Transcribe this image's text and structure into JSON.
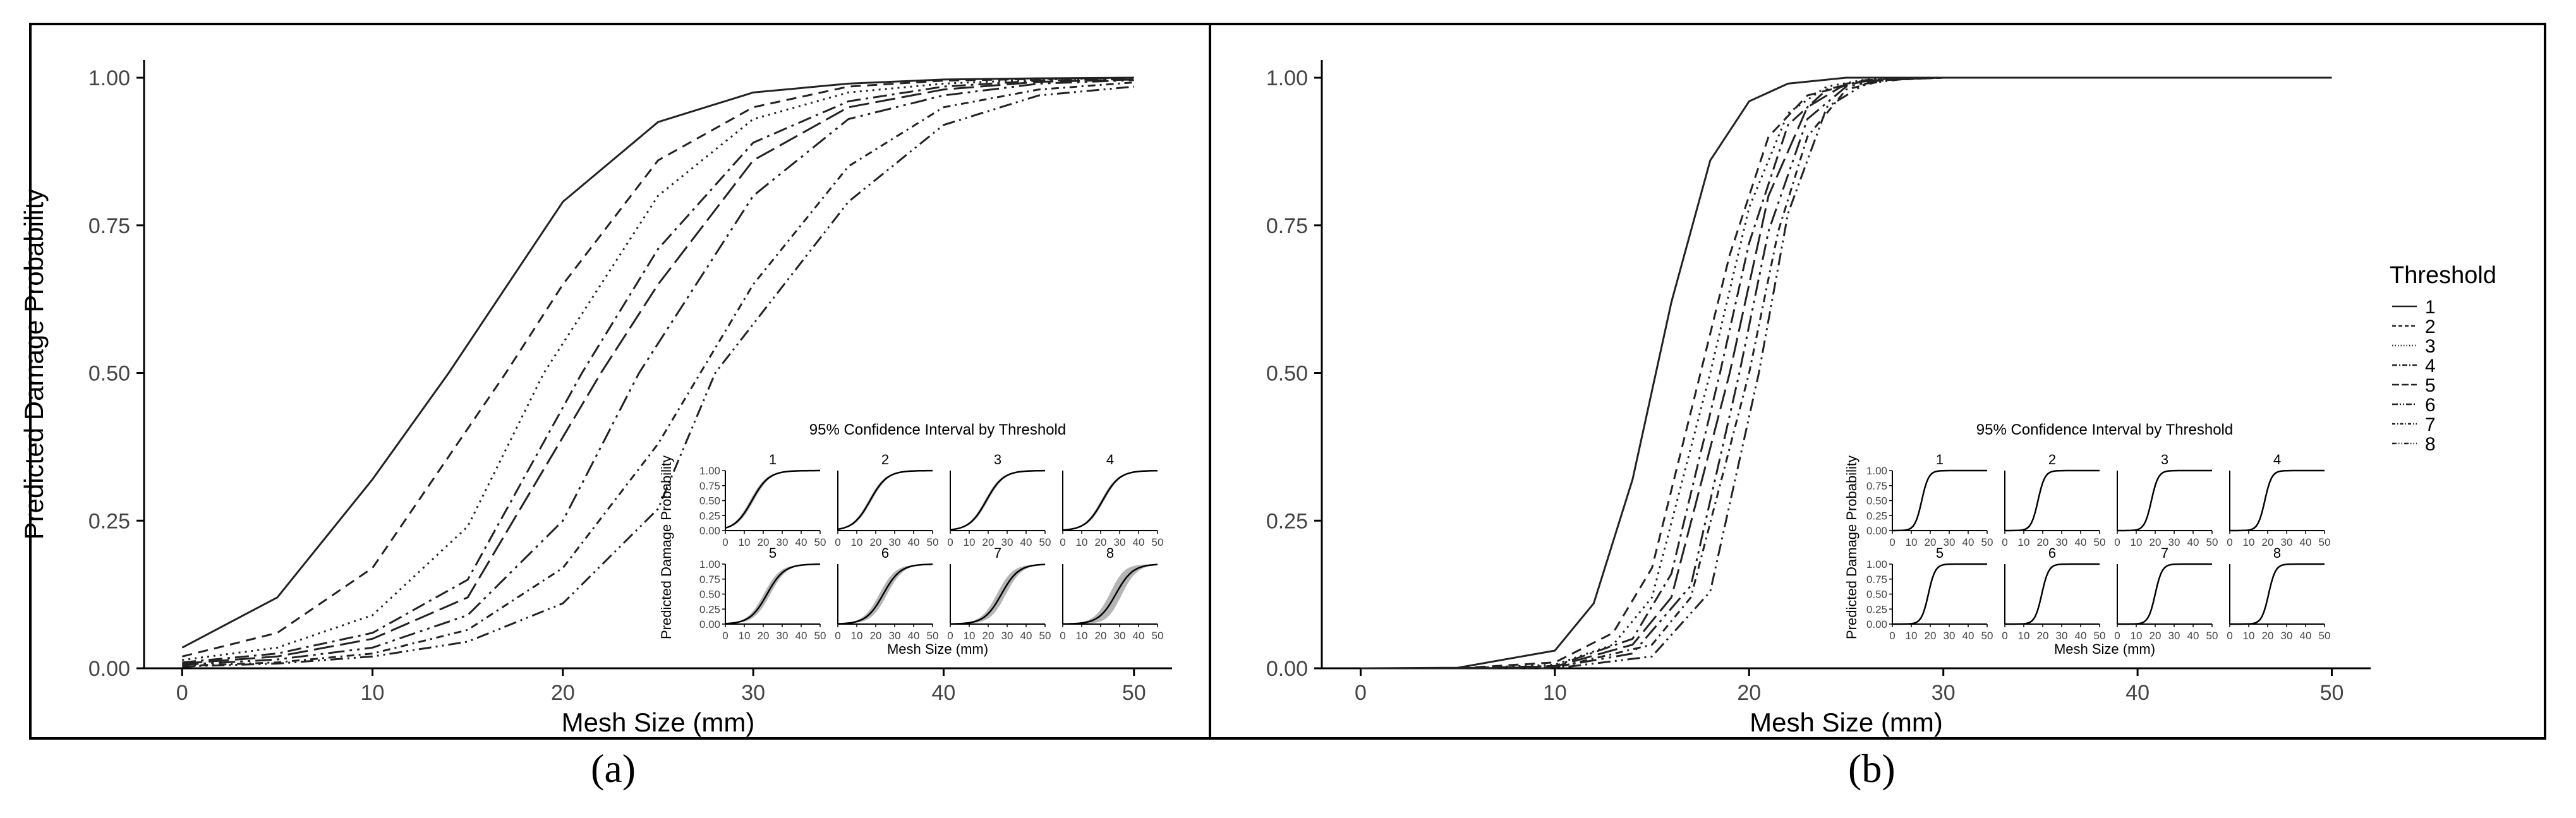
{
  "chart_data": [
    {
      "panel": "(a)",
      "type": "line",
      "xlabel": "Mesh Size (mm)",
      "ylabel": "Predicted Damage Probability",
      "xlim": [
        -2,
        52
      ],
      "ylim": [
        0,
        1.03
      ],
      "xticks": [
        "0",
        "10",
        "20",
        "30",
        "40",
        "50"
      ],
      "yticks": [
        "0.00",
        "0.25",
        "0.50",
        "0.75",
        "1.00"
      ],
      "grid": false,
      "series": [
        {
          "name": "1",
          "x": [
            0,
            5,
            10,
            14,
            20,
            25,
            30,
            35,
            40,
            45,
            50
          ],
          "y": [
            0.035,
            0.12,
            0.32,
            0.5,
            0.79,
            0.925,
            0.975,
            0.99,
            0.997,
            0.999,
            1.0
          ]
        },
        {
          "name": "2",
          "x": [
            0,
            5,
            10,
            17,
            20,
            25,
            30,
            35,
            40,
            45,
            50
          ],
          "y": [
            0.02,
            0.06,
            0.17,
            0.5,
            0.65,
            0.86,
            0.95,
            0.985,
            0.995,
            0.998,
            1.0
          ]
        },
        {
          "name": "3",
          "x": [
            0,
            5,
            10,
            15,
            19,
            25,
            30,
            35,
            40,
            45,
            50
          ],
          "y": [
            0.014,
            0.035,
            0.09,
            0.24,
            0.5,
            0.8,
            0.93,
            0.975,
            0.99,
            0.997,
            1.0
          ]
        },
        {
          "name": "4",
          "x": [
            0,
            5,
            10,
            15,
            21,
            25,
            30,
            35,
            40,
            45,
            50
          ],
          "y": [
            0.01,
            0.025,
            0.06,
            0.15,
            0.5,
            0.71,
            0.89,
            0.96,
            0.985,
            0.995,
            0.998
          ]
        },
        {
          "name": "5",
          "x": [
            0,
            5,
            10,
            15,
            22,
            25,
            30,
            35,
            40,
            45,
            50
          ],
          "y": [
            0.008,
            0.02,
            0.05,
            0.12,
            0.5,
            0.65,
            0.86,
            0.95,
            0.98,
            0.993,
            0.997
          ]
        },
        {
          "name": "6",
          "x": [
            0,
            5,
            10,
            15,
            20,
            24,
            30,
            35,
            40,
            45,
            50
          ],
          "y": [
            0.006,
            0.015,
            0.035,
            0.09,
            0.25,
            0.5,
            0.8,
            0.93,
            0.97,
            0.99,
            0.996
          ]
        },
        {
          "name": "7",
          "x": [
            0,
            5,
            10,
            15,
            20,
            25,
            30,
            35,
            40,
            45,
            50
          ],
          "y": [
            0.004,
            0.01,
            0.025,
            0.065,
            0.17,
            0.38,
            0.65,
            0.85,
            0.95,
            0.98,
            0.992
          ]
        },
        {
          "name": "8",
          "x": [
            0,
            5,
            10,
            15,
            20,
            25,
            28,
            35,
            40,
            45,
            50
          ],
          "y": [
            0.003,
            0.008,
            0.02,
            0.045,
            0.11,
            0.27,
            0.5,
            0.79,
            0.92,
            0.97,
            0.985
          ]
        }
      ],
      "inset": {
        "title": "95% Confidence Interval by Threshold",
        "xlabel": "Mesh Size (mm)",
        "ylabel": "Predicted Damage Probability",
        "xticks": [
          "0",
          "10",
          "20",
          "30",
          "40",
          "50"
        ],
        "yticks": [
          "0.00",
          "0.25",
          "0.50",
          "0.75",
          "1.00"
        ],
        "panels": [
          "1",
          "2",
          "3",
          "4",
          "5",
          "6",
          "7",
          "8"
        ],
        "midpoints": [
          14,
          17,
          19,
          21,
          22,
          24,
          27,
          28
        ],
        "scale": 4.5,
        "band": [
          0.06,
          0.05,
          0.05,
          0.05,
          0.1,
          0.12,
          0.14,
          0.2
        ]
      }
    },
    {
      "panel": "(b)",
      "type": "line",
      "xlabel": "Mesh Size (mm)",
      "ylabel": "",
      "xlim": [
        -2,
        52
      ],
      "ylim": [
        0,
        1.03
      ],
      "xticks": [
        "0",
        "10",
        "20",
        "30",
        "40",
        "50"
      ],
      "yticks": [
        "0.00",
        "0.25",
        "0.50",
        "0.75",
        "1.00"
      ],
      "grid": false,
      "legend": {
        "title": "Threshold",
        "position": "right",
        "entries": [
          "1",
          "2",
          "3",
          "4",
          "5",
          "6",
          "7",
          "8"
        ]
      },
      "series": [
        {
          "name": "1",
          "x": [
            0,
            5,
            10,
            12,
            14,
            16,
            18,
            20,
            22,
            25,
            30,
            50
          ],
          "y": [
            0.0,
            0.001,
            0.03,
            0.11,
            0.32,
            0.62,
            0.86,
            0.96,
            0.99,
            1.0,
            1.0,
            1.0
          ]
        },
        {
          "name": "2",
          "x": [
            0,
            5,
            10,
            13,
            15,
            17.5,
            19,
            21,
            23,
            26,
            30,
            50
          ],
          "y": [
            0.0,
            0.0,
            0.01,
            0.06,
            0.17,
            0.5,
            0.7,
            0.9,
            0.97,
            0.995,
            1.0,
            1.0
          ]
        },
        {
          "name": "3",
          "x": [
            0,
            5,
            10,
            13,
            15,
            18,
            20,
            22,
            24,
            26,
            30,
            50
          ],
          "y": [
            0.0,
            0.0,
            0.006,
            0.04,
            0.12,
            0.5,
            0.78,
            0.94,
            0.985,
            0.997,
            1.0,
            1.0
          ]
        },
        {
          "name": "4",
          "x": [
            0,
            5,
            10,
            14,
            16,
            18.5,
            20,
            22,
            24,
            26,
            30,
            50
          ],
          "y": [
            0.0,
            0.0,
            0.004,
            0.05,
            0.16,
            0.5,
            0.72,
            0.92,
            0.98,
            0.996,
            1.0,
            1.0
          ]
        },
        {
          "name": "5",
          "x": [
            0,
            5,
            10,
            14,
            16,
            19,
            21,
            23,
            25,
            27,
            30,
            50
          ],
          "y": [
            0.0,
            0.0,
            0.003,
            0.04,
            0.12,
            0.5,
            0.8,
            0.95,
            0.99,
            0.998,
            1.0,
            1.0
          ]
        },
        {
          "name": "6",
          "x": [
            0,
            5,
            10,
            14,
            17,
            19.5,
            21,
            23,
            25,
            27,
            30,
            50
          ],
          "y": [
            0.0,
            0.0,
            0.002,
            0.025,
            0.14,
            0.5,
            0.74,
            0.93,
            0.985,
            0.997,
            1.0,
            1.0
          ]
        },
        {
          "name": "7",
          "x": [
            0,
            5,
            10,
            15,
            17,
            20,
            21.5,
            23,
            25,
            27,
            30,
            50
          ],
          "y": [
            0.0,
            0.0,
            0.001,
            0.04,
            0.12,
            0.5,
            0.74,
            0.9,
            0.98,
            0.996,
            1.0,
            1.0
          ]
        },
        {
          "name": "8",
          "x": [
            0,
            5,
            10,
            15,
            18,
            20.5,
            22,
            24,
            26,
            28,
            30,
            50
          ],
          "y": [
            0.0,
            0.0,
            0.0,
            0.02,
            0.13,
            0.5,
            0.77,
            0.95,
            0.99,
            0.998,
            1.0,
            1.0
          ]
        }
      ],
      "inset": {
        "title": "95% Confidence Interval by Threshold",
        "xlabel": "Mesh Size (mm)",
        "ylabel": "Predicted Damage Probability",
        "xticks": [
          "0",
          "10",
          "20",
          "30",
          "40",
          "50"
        ],
        "yticks": [
          "0.00",
          "0.25",
          "0.50",
          "0.75",
          "1.00"
        ],
        "panels": [
          "1",
          "2",
          "3",
          "4",
          "5",
          "6",
          "7",
          "8"
        ],
        "midpoints": [
          15.5,
          17.5,
          18,
          18.5,
          19,
          19.5,
          20,
          20.5
        ],
        "scale": 1.8,
        "band": [
          0.02,
          0.015,
          0.015,
          0.015,
          0.015,
          0.015,
          0.015,
          0.015
        ]
      }
    }
  ]
}
